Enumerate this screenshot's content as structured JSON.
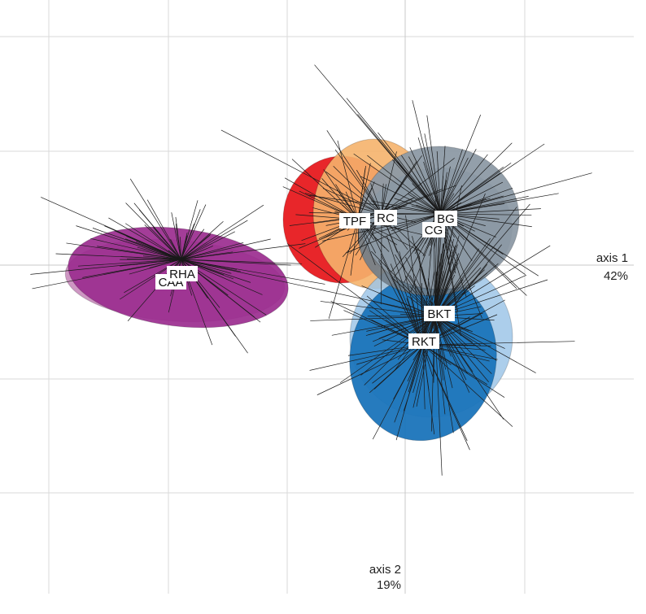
{
  "chart_data": {
    "type": "scatter",
    "subtype": "discriminant analysis ordination (group centroids with dispersion ellipses and star rays)",
    "grid": true,
    "axes": {
      "x": {
        "name": "axis 1",
        "percent": "42%"
      },
      "y": {
        "name": "axis 2",
        "percent": "19%"
      }
    },
    "groups": [
      {
        "name": "RHA",
        "color": "#9b2d8f",
        "centroid": [
          -1.9,
          0.05
        ]
      },
      {
        "name": "CAA",
        "color": "#c98bbd",
        "centroid": [
          -2.0,
          -0.1
        ]
      },
      {
        "name": "TPF",
        "color": "#e8262a",
        "centroid": [
          -0.4,
          0.4
        ]
      },
      {
        "name": "RC",
        "color": "#f5b26b",
        "centroid": [
          -0.2,
          0.45
        ]
      },
      {
        "name": "BG",
        "color": "#8d9aa5",
        "centroid": [
          0.3,
          0.45
        ]
      },
      {
        "name": "CG",
        "color": "#707d88",
        "centroid": [
          0.25,
          0.35
        ]
      },
      {
        "name": "BKT",
        "color": "#9ec6e8",
        "centroid": [
          0.25,
          -0.45
        ]
      },
      {
        "name": "RKT",
        "color": "#1a74bb",
        "centroid": [
          0.15,
          -0.7
        ]
      }
    ]
  }
}
